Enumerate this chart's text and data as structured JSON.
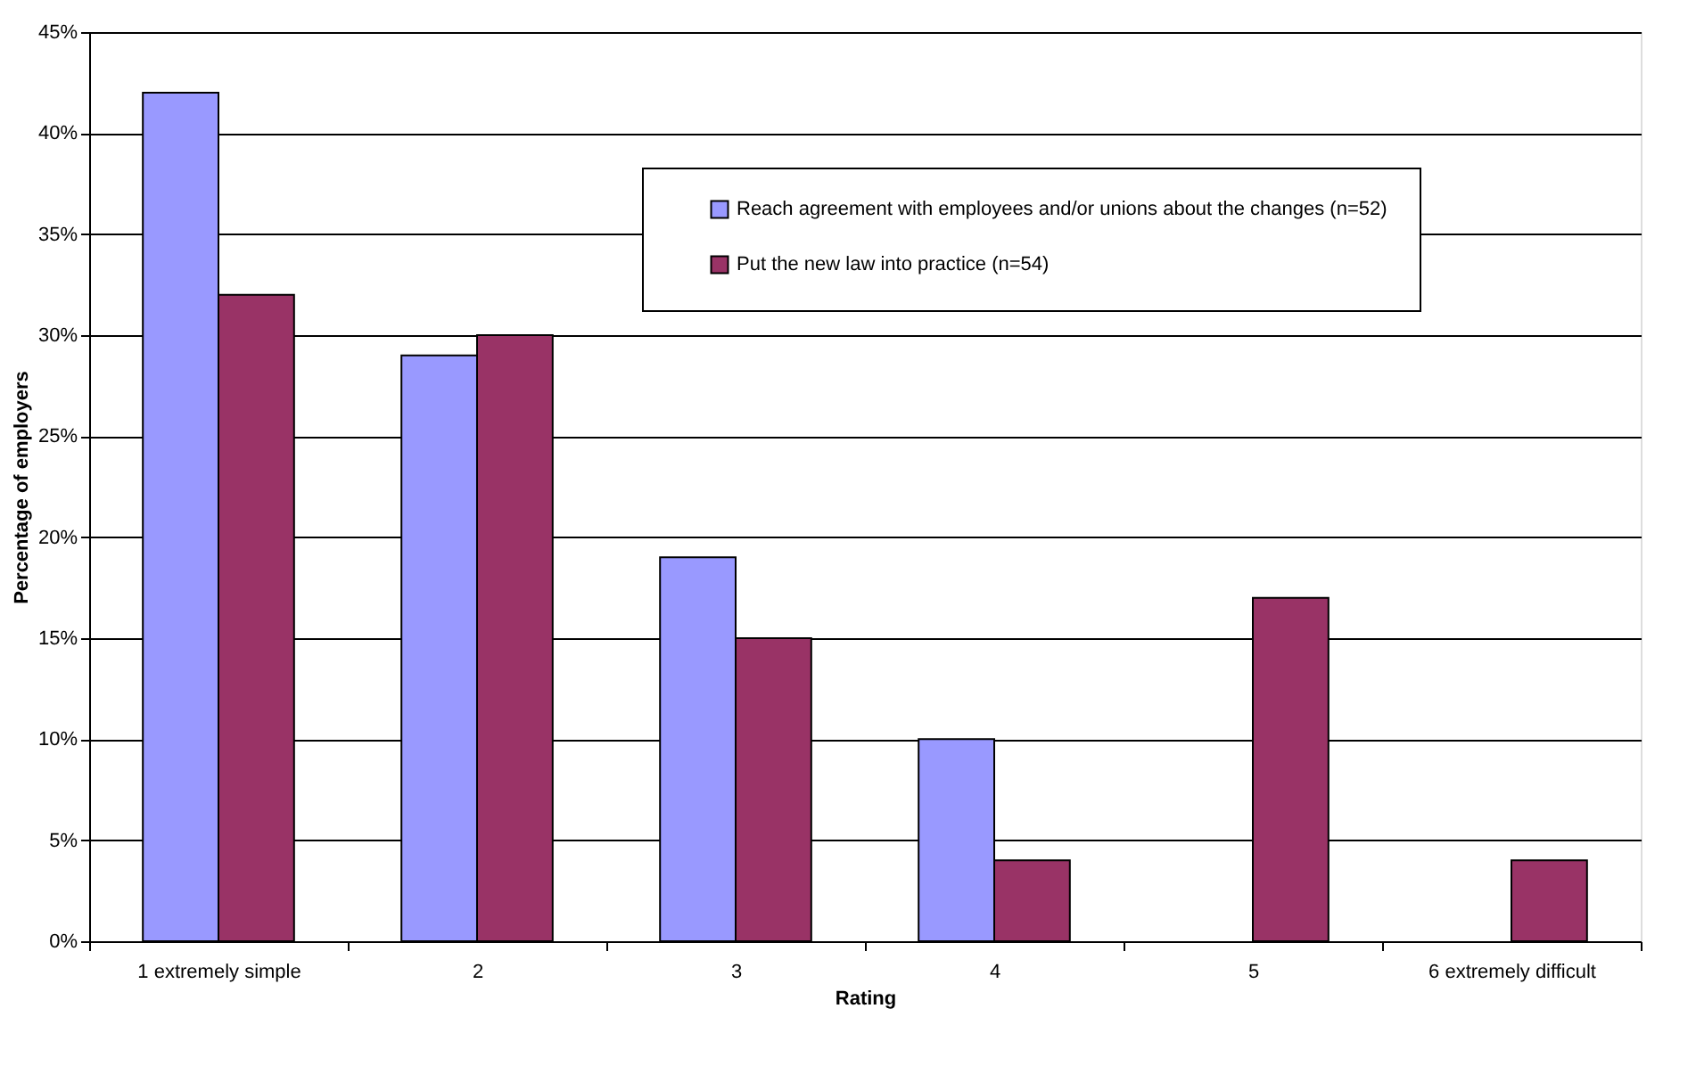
{
  "chart_data": {
    "type": "bar",
    "xlabel": "Rating",
    "ylabel": "Percentage of employers",
    "categories": [
      "1 extremely simple",
      "2",
      "3",
      "4",
      "5",
      "6 extremely difficult"
    ],
    "series": [
      {
        "name": "Reach agreement with employees and/or unions about the changes (n=52)",
        "color": "#9999ff",
        "values": [
          42,
          29,
          19,
          10,
          null,
          null
        ]
      },
      {
        "name": "Put the new law into practice (n=54)",
        "color": "#993366",
        "values": [
          32,
          30,
          15,
          4,
          17,
          4
        ]
      }
    ],
    "ylim": [
      0,
      45
    ],
    "yticks": [
      {
        "value": 0,
        "label": "0%"
      },
      {
        "value": 5,
        "label": "5%"
      },
      {
        "value": 10,
        "label": "10%"
      },
      {
        "value": 15,
        "label": "15%"
      },
      {
        "value": 20,
        "label": "20%"
      },
      {
        "value": 25,
        "label": "25%"
      },
      {
        "value": 30,
        "label": "30%"
      },
      {
        "value": 35,
        "label": "35%"
      },
      {
        "value": 40,
        "label": "40%"
      },
      {
        "value": 45,
        "label": "45%"
      }
    ],
    "grid": "y",
    "legend": "top right"
  }
}
